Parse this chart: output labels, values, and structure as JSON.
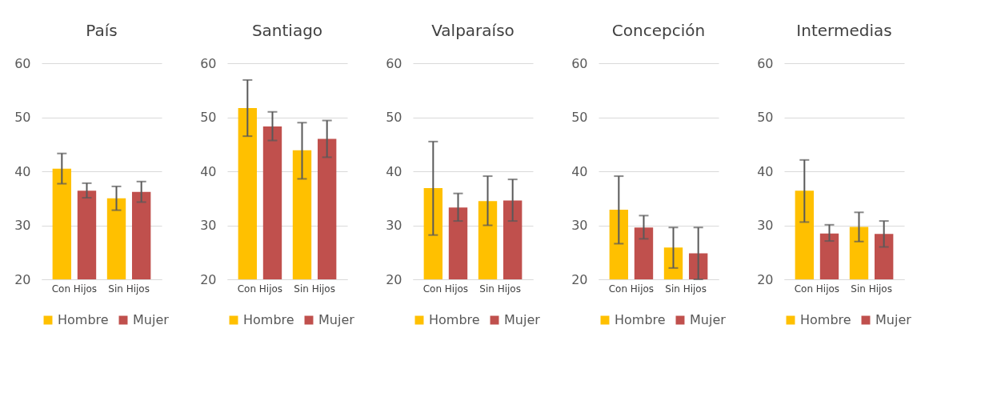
{
  "chart_data": [
    {
      "type": "bar",
      "title": "País",
      "categories": [
        "Con Hijos",
        "Sin Hijos"
      ],
      "ylim": [
        20,
        60
      ],
      "yticks": [
        20,
        30,
        40,
        50,
        60
      ],
      "grid": "y",
      "legend": "bottom",
      "series": [
        {
          "name": "Hombre",
          "color": "#ffc000",
          "values": [
            40.5,
            35.0
          ],
          "errors": [
            [
              37.7,
              43.3
            ],
            [
              32.8,
              37.2
            ]
          ]
        },
        {
          "name": "Mujer",
          "color": "#c0504d",
          "values": [
            36.4,
            36.2
          ],
          "errors": [
            [
              35.1,
              37.8
            ],
            [
              34.3,
              38.1
            ]
          ]
        }
      ]
    },
    {
      "type": "bar",
      "title": "Santiago",
      "categories": [
        "Con Hijos",
        "Sin Hijos"
      ],
      "ylim": [
        20,
        60
      ],
      "yticks": [
        20,
        30,
        40,
        50,
        60
      ],
      "grid": "y",
      "legend": "bottom",
      "series": [
        {
          "name": "Hombre",
          "color": "#ffc000",
          "values": [
            51.7,
            43.9
          ],
          "errors": [
            [
              46.5,
              56.9
            ],
            [
              38.6,
              49.0
            ]
          ]
        },
        {
          "name": "Mujer",
          "color": "#c0504d",
          "values": [
            48.3,
            46.0
          ],
          "errors": [
            [
              45.7,
              51.0
            ],
            [
              42.6,
              49.4
            ]
          ]
        }
      ]
    },
    {
      "type": "bar",
      "title": "Valparaíso",
      "categories": [
        "Con Hijos",
        "Sin Hijos"
      ],
      "ylim": [
        20,
        60
      ],
      "yticks": [
        20,
        30,
        40,
        50,
        60
      ],
      "grid": "y",
      "legend": "bottom",
      "series": [
        {
          "name": "Hombre",
          "color": "#ffc000",
          "values": [
            36.9,
            34.5
          ],
          "errors": [
            [
              28.2,
              45.5
            ],
            [
              30.0,
              39.1
            ]
          ]
        },
        {
          "name": "Mujer",
          "color": "#c0504d",
          "values": [
            33.3,
            34.6
          ],
          "errors": [
            [
              30.8,
              35.9
            ],
            [
              30.8,
              38.5
            ]
          ]
        }
      ]
    },
    {
      "type": "bar",
      "title": "Concepción",
      "categories": [
        "Con Hijos",
        "Sin Hijos"
      ],
      "ylim": [
        20,
        60
      ],
      "yticks": [
        20,
        30,
        40,
        50,
        60
      ],
      "grid": "y",
      "legend": "bottom",
      "series": [
        {
          "name": "Hombre",
          "color": "#ffc000",
          "values": [
            32.9,
            25.9
          ],
          "errors": [
            [
              26.6,
              39.1
            ],
            [
              22.1,
              29.6
            ]
          ]
        },
        {
          "name": "Mujer",
          "color": "#c0504d",
          "values": [
            29.6,
            24.8
          ],
          "errors": [
            [
              27.5,
              31.8
            ],
            [
              20.0,
              29.6
            ]
          ]
        }
      ]
    },
    {
      "type": "bar",
      "title": "Intermedias",
      "categories": [
        "Con Hijos",
        "Sin Hijos"
      ],
      "ylim": [
        20,
        60
      ],
      "yticks": [
        20,
        30,
        40,
        50,
        60
      ],
      "grid": "y",
      "legend": "bottom",
      "series": [
        {
          "name": "Hombre",
          "color": "#ffc000",
          "values": [
            36.4,
            29.7
          ],
          "errors": [
            [
              30.6,
              42.1
            ],
            [
              27.0,
              32.4
            ]
          ]
        },
        {
          "name": "Mujer",
          "color": "#c0504d",
          "values": [
            28.5,
            28.4
          ],
          "errors": [
            [
              27.1,
              30.1
            ],
            [
              26.0,
              30.8
            ]
          ]
        }
      ]
    }
  ]
}
